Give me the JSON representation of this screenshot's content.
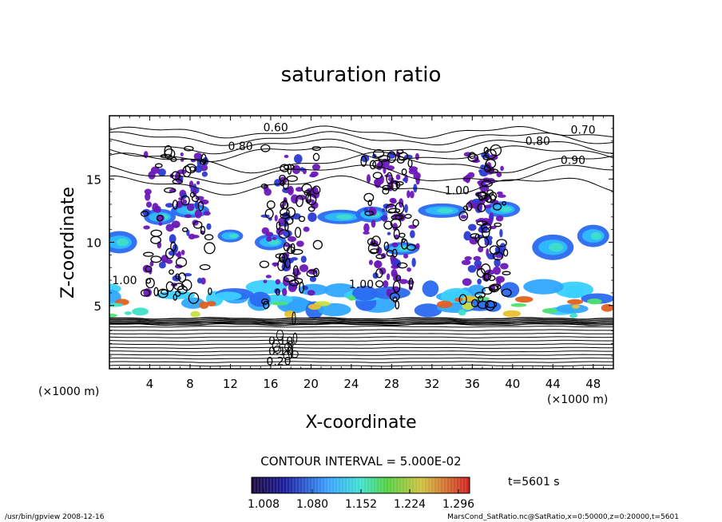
{
  "chart_data": {
    "type": "heatmap",
    "title": "saturation ratio",
    "xlabel": "X-coordinate",
    "ylabel": "Z-coordinate",
    "x_unit_left": "(×1000 m)",
    "x_unit_right": "(×1000 m)",
    "xlim": [
      0,
      50
    ],
    "ylim": [
      0,
      20
    ],
    "xticks": [
      4,
      8,
      12,
      16,
      20,
      24,
      28,
      32,
      36,
      40,
      44,
      48
    ],
    "yticks": [
      5,
      10,
      15
    ],
    "contour_interval_text": "CONTOUR INTERVAL = 5.000E-02",
    "time_label": "t=5601 s",
    "colorbar": {
      "ticks": [
        "1.008",
        "1.080",
        "1.152",
        "1.224",
        "1.296"
      ]
    },
    "contour_labels": [
      {
        "text": "0.60",
        "x": 16.5,
        "z": 19.1
      },
      {
        "text": "0.80",
        "x": 13.0,
        "z": 17.6
      },
      {
        "text": "0.80",
        "x": 42.5,
        "z": 18.0
      },
      {
        "text": "0.70",
        "x": 47.0,
        "z": 18.9
      },
      {
        "text": "0.90",
        "x": 46.0,
        "z": 16.5
      },
      {
        "text": "1.00",
        "x": 34.5,
        "z": 14.1
      },
      {
        "text": "1.00",
        "x": 1.5,
        "z": 7.0
      },
      {
        "text": "1.00",
        "x": 25.0,
        "z": 6.7
      },
      {
        "text": "0.20",
        "x": 16.8,
        "z": 0.6
      },
      {
        "text": "0.10",
        "x": 17.0,
        "z": 1.4
      },
      {
        "text": "0.10",
        "x": 17.0,
        "z": 2.2
      }
    ],
    "grid": false
  },
  "footer": {
    "left": "/usr/bin/gpview   2008-12-16",
    "right": "MarsCond_SatRatio.nc@SatRatio,x=0:50000,z=0:20000,t=5601"
  }
}
